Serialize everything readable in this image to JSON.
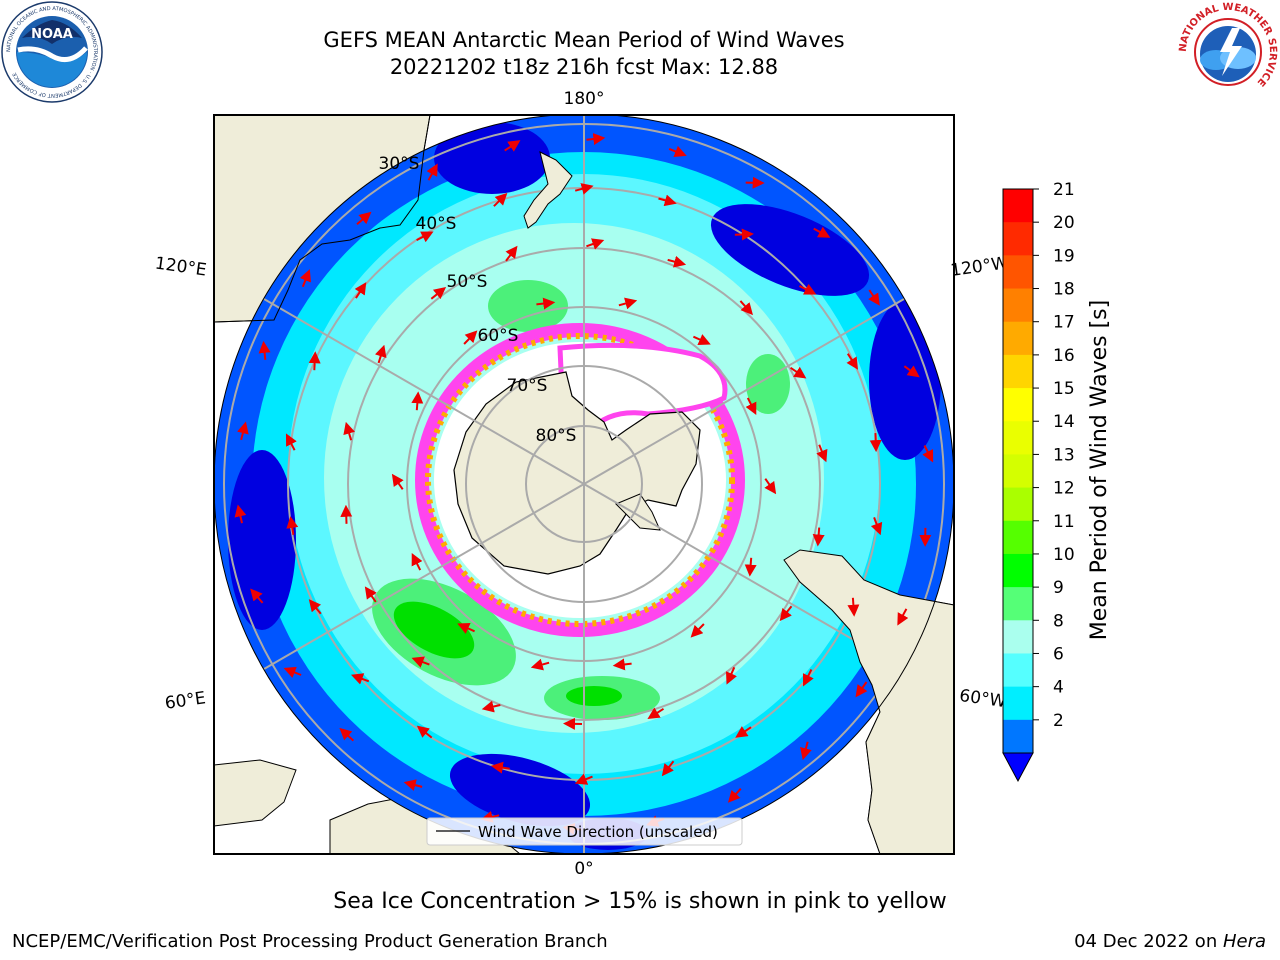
{
  "header": {
    "title_line1": "GEFS MEAN Antarctic Mean Period of Wind Waves",
    "title_line2": "20221202 t18z 216h fcst   Max: 12.88"
  },
  "logos": {
    "noara_text": "NOAA",
    "noaa_ring_text": "NATIONAL OCEANIC AND ATMOSPHERIC ADMINISTRATION · U.S. DEPARTMENT OF COMMERCE",
    "nws_ring_text": "NATIONAL WEATHER SERVICE"
  },
  "map": {
    "longitude_labels": [
      "180°",
      "120°E",
      "120°W",
      "60°E",
      "60°W",
      "0°"
    ],
    "latitude_labels": [
      "30°S",
      "40°S",
      "50°S",
      "60°S",
      "70°S",
      "80°S"
    ],
    "legend_label": "Wind Wave Direction (unscaled)",
    "colors": {
      "land": "#efedd9",
      "ocean_2_4": "#0055ff",
      "ocean_lt2": "#0000e0",
      "ocean_4_6": "#00e8ff",
      "ocean_6_8": "#5cf7ff",
      "ocean_8_9": "#a8fff0",
      "ocean_9_10": "#4cf07a",
      "ocean_10_11": "#00e000",
      "sea_ice_edge": "#ff44ee",
      "arrow": "#ee0000",
      "graticule": "#aaaaaa"
    }
  },
  "colorbar": {
    "label": "Mean Period of Wind Waves [s]",
    "ticks": [
      "21",
      "20",
      "19",
      "18",
      "17",
      "16",
      "15",
      "14",
      "13",
      "12",
      "11",
      "10",
      "9",
      "8",
      "6",
      "4",
      "2"
    ],
    "colors_top_to_bottom": [
      "#ff0000",
      "#ff2a00",
      "#ff5500",
      "#ff8000",
      "#ffaa00",
      "#ffd500",
      "#ffff00",
      "#eaff00",
      "#d4ff00",
      "#aaff00",
      "#55ff00",
      "#00ff00",
      "#55ff77",
      "#aaffee",
      "#55ffff",
      "#00eeff",
      "#0077ff"
    ],
    "underflow_color": "#0000ff"
  },
  "caption": "Sea Ice Concentration > 15% is shown in pink to yellow",
  "footer": {
    "left": "NCEP/EMC/Verification Post Processing Product Generation Branch",
    "right_date": "04 Dec 2022 on ",
    "right_machine": "Hera"
  }
}
